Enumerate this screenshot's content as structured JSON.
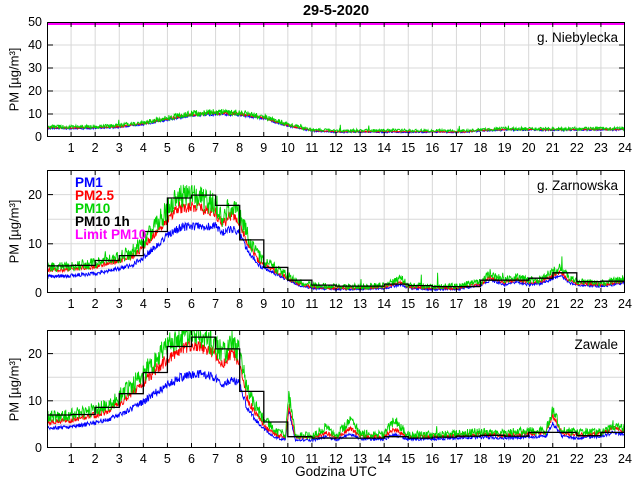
{
  "title": "29-5-2020",
  "xlabel": "Godzina UTC",
  "ylabel": "PM [µg/m³]",
  "legend": [
    "PM1",
    "PM2.5",
    "PM10",
    "PM10 1h",
    "Limit PM10"
  ],
  "palette": {
    "PM1": "#0000ff",
    "PM2.5": "#ff0000",
    "PM10": "#00d400",
    "PM10 1h": "#000000",
    "Limit PM10": "#ff00ff",
    "grid": "#d8d8d8",
    "frame": "#000000"
  },
  "limit_pm10_value": 50,
  "xticks": [
    1,
    2,
    3,
    4,
    5,
    6,
    7,
    8,
    9,
    10,
    11,
    12,
    13,
    14,
    15,
    16,
    17,
    18,
    19,
    20,
    21,
    22,
    23,
    24
  ],
  "chart_data": [
    {
      "type": "line",
      "station": "g. Niebylecka",
      "ylim": [
        0,
        50
      ],
      "yticks": [
        0,
        10,
        20,
        30,
        40,
        50
      ],
      "grid_step": 10,
      "show_limit": true,
      "x": [
        0,
        1,
        2,
        3,
        4,
        5,
        6,
        7,
        8,
        9,
        10,
        10.5,
        11,
        12,
        13,
        14,
        15,
        16,
        17,
        17.5,
        18,
        19,
        20,
        21,
        22,
        23,
        24
      ],
      "series": [
        {
          "name": "PM1",
          "color_key": "PM1",
          "noise": 0.4,
          "spikes": false,
          "y": [
            3.8,
            3.7,
            3.8,
            4.3,
            5.6,
            7.5,
            9.4,
            10.0,
            9.7,
            8.1,
            4.8,
            3.6,
            2.6,
            2.1,
            2.1,
            2.1,
            2.1,
            2.1,
            2.0,
            2.2,
            2.7,
            3.1,
            3.1,
            3.0,
            3.1,
            3.1,
            3.2
          ]
        },
        {
          "name": "PM2.5",
          "color_key": "PM2.5",
          "noise": 0.35,
          "spikes": false,
          "y": [
            4.1,
            4.0,
            4.1,
            4.6,
            5.9,
            7.9,
            9.8,
            10.4,
            10.1,
            8.4,
            5.1,
            3.9,
            2.9,
            2.4,
            2.4,
            2.4,
            2.4,
            2.4,
            2.2,
            2.4,
            2.9,
            3.3,
            3.3,
            3.2,
            3.3,
            3.3,
            3.4
          ]
        },
        {
          "name": "PM10",
          "color_key": "PM10",
          "noise": 0.8,
          "spikes": true,
          "y": [
            4.5,
            4.4,
            4.5,
            5.0,
            6.3,
            8.3,
            10.2,
            10.8,
            10.5,
            8.8,
            5.5,
            4.2,
            3.2,
            2.8,
            2.8,
            2.8,
            2.8,
            2.8,
            2.6,
            2.8,
            3.2,
            3.6,
            3.6,
            3.5,
            3.6,
            3.6,
            3.7
          ]
        }
      ],
      "hourly_pm10": null
    },
    {
      "type": "line",
      "station": "g. Zarnowska",
      "ylim": [
        0,
        25
      ],
      "yticks": [
        0,
        10,
        20
      ],
      "grid_step": 5,
      "show_limit": false,
      "x": [
        0,
        1,
        2,
        3,
        3.5,
        4,
        4.5,
        5,
        5.5,
        6,
        6.5,
        7,
        7.3,
        7.7,
        8,
        8.3,
        8.7,
        9,
        9.5,
        10,
        10.5,
        11,
        12,
        13,
        14,
        14.7,
        15,
        16,
        17,
        18,
        18.4,
        19,
        19.5,
        20,
        20.5,
        21,
        21.3,
        21.7,
        22,
        23,
        23.5,
        24
      ],
      "series": [
        {
          "name": "PM1",
          "color_key": "PM1",
          "noise": 0.42,
          "spikes": false,
          "y": [
            3.4,
            3.5,
            4.0,
            5.0,
            5.6,
            7.2,
            9.5,
            11.8,
            13.2,
            13.5,
            13.5,
            13.8,
            12.2,
            13.0,
            12.0,
            9.0,
            6.2,
            5.0,
            3.9,
            2.6,
            1.5,
            1.0,
            0.8,
            0.8,
            1.0,
            1.7,
            1.0,
            0.8,
            0.8,
            1.5,
            2.6,
            1.7,
            2.3,
            1.7,
            1.9,
            2.9,
            3.7,
            2.0,
            1.7,
            1.4,
            1.7,
            2.1
          ]
        },
        {
          "name": "PM2.5",
          "color_key": "PM2.5",
          "noise": 0.45,
          "spikes": false,
          "y": [
            4.7,
            4.8,
            5.4,
            6.5,
            7.3,
            9.3,
            12.0,
            15.0,
            17.3,
            17.6,
            17.0,
            16.3,
            13.8,
            16.2,
            14.2,
            10.5,
            7.0,
            5.8,
            4.4,
            3.0,
            1.8,
            1.2,
            1.0,
            1.0,
            1.2,
            2.2,
            1.2,
            1.0,
            1.0,
            1.8,
            3.2,
            2.1,
            2.8,
            2.1,
            2.3,
            3.5,
            4.4,
            2.4,
            2.0,
            1.7,
            2.0,
            2.5
          ]
        },
        {
          "name": "PM10",
          "color_key": "PM10",
          "noise": 0.95,
          "spikes": true,
          "y": [
            5.3,
            5.4,
            6.0,
            7.3,
            8.2,
            10.5,
            13.5,
            17.0,
            19.5,
            20.0,
            19.0,
            18.0,
            15.5,
            18.0,
            16.0,
            12.0,
            8.0,
            6.5,
            5.0,
            3.5,
            2.2,
            1.6,
            1.3,
            1.3,
            1.6,
            3.0,
            1.6,
            1.4,
            1.4,
            2.2,
            4.0,
            2.6,
            3.4,
            2.6,
            2.8,
            4.2,
            5.2,
            3.0,
            2.4,
            2.0,
            2.4,
            3.0
          ]
        }
      ],
      "hourly_pm10": [
        5.5,
        5.6,
        6.6,
        7.6,
        12.5,
        19.3,
        19.9,
        17.8,
        10.8,
        5.2,
        2.6,
        1.6,
        1.4,
        1.4,
        1.8,
        1.5,
        1.3,
        1.3,
        2.6,
        2.6,
        3.0,
        4.1,
        2.3,
        2.4
      ]
    },
    {
      "type": "line",
      "station": "Zawale",
      "ylim": [
        0,
        25
      ],
      "yticks": [
        0,
        10,
        20
      ],
      "grid_step": 5,
      "show_limit": false,
      "x": [
        0,
        1,
        2,
        2.5,
        3,
        3.5,
        4,
        4.5,
        5,
        5.5,
        6,
        6.5,
        7,
        7.3,
        7.7,
        8,
        8.3,
        8.7,
        9,
        9.5,
        9.9,
        10.05,
        10.3,
        11,
        11.6,
        12,
        12.6,
        13,
        14,
        14.4,
        15,
        16,
        17,
        18,
        19,
        20,
        20.7,
        21,
        21.4,
        22,
        23,
        23.5,
        24
      ],
      "series": [
        {
          "name": "PM1",
          "color_key": "PM1",
          "noise": 0.42,
          "spikes": false,
          "y": [
            4.1,
            4.5,
            5.3,
            6.0,
            7.0,
            8.3,
            9.8,
            11.8,
            13.3,
            14.8,
            15.5,
            15.5,
            15.0,
            13.3,
            14.5,
            13.5,
            8.5,
            5.8,
            4.0,
            2.2,
            1.8,
            8.0,
            1.8,
            1.6,
            2.4,
            1.7,
            3.0,
            1.9,
            1.8,
            2.9,
            1.8,
            1.9,
            2.1,
            2.3,
            2.1,
            2.4,
            2.4,
            5.2,
            2.5,
            2.1,
            2.4,
            3.3,
            2.8
          ]
        },
        {
          "name": "PM2.5",
          "color_key": "PM2.5",
          "noise": 0.5,
          "spikes": false,
          "y": [
            5.4,
            5.9,
            7.0,
            7.8,
            9.4,
            11.5,
            13.8,
            16.5,
            19.0,
            20.8,
            21.8,
            21.2,
            19.8,
            17.5,
            20.5,
            17.5,
            10.5,
            7.0,
            5.0,
            2.8,
            2.4,
            9.0,
            2.4,
            2.2,
            3.2,
            2.2,
            4.2,
            2.5,
            2.4,
            4.0,
            2.4,
            2.5,
            2.7,
            2.9,
            2.7,
            3.1,
            3.1,
            6.8,
            3.2,
            2.8,
            3.0,
            4.2,
            3.6
          ]
        },
        {
          "name": "PM10",
          "color_key": "PM10",
          "noise": 1.0,
          "spikes": true,
          "y": [
            6.6,
            7.0,
            8.2,
            9.0,
            10.8,
            13.0,
            15.5,
            18.5,
            21.5,
            23.5,
            24.5,
            23.5,
            21.5,
            20.0,
            22.5,
            20.0,
            12.5,
            8.5,
            6.0,
            3.5,
            3.0,
            11.0,
            3.0,
            2.5,
            4.5,
            2.5,
            6.0,
            3.0,
            2.8,
            6.0,
            2.8,
            2.8,
            3.0,
            3.4,
            3.2,
            3.6,
            3.6,
            7.8,
            3.8,
            3.2,
            3.4,
            4.8,
            4.2
          ]
        }
      ],
      "hourly_pm10": [
        7.0,
        7.1,
        8.6,
        11.5,
        16.0,
        21.5,
        23.5,
        21.0,
        12.0,
        5.5,
        2.4,
        2.1,
        2.1,
        2.1,
        2.4,
        2.1,
        2.3,
        2.5,
        2.7,
        2.5,
        3.3,
        3.3,
        2.6,
        3.3
      ]
    }
  ]
}
